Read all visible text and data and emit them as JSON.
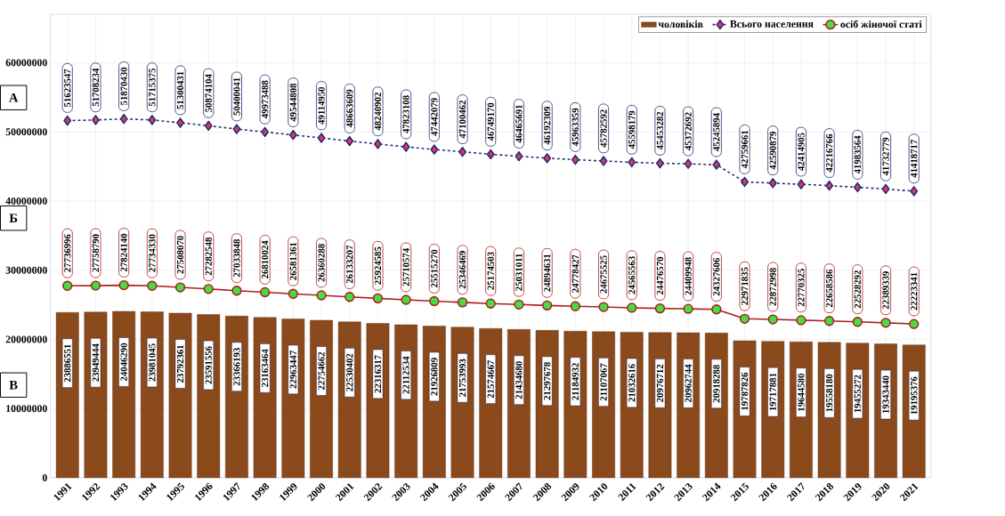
{
  "chart_data": {
    "type": "bar",
    "categories": [
      "1991",
      "1992",
      "1993",
      "1994",
      "1995",
      "1996",
      "1997",
      "1998",
      "1999",
      "2000",
      "2001",
      "2002",
      "2003",
      "2004",
      "2005",
      "2006",
      "2007",
      "2008",
      "2009",
      "2010",
      "2011",
      "2012",
      "2013",
      "2014",
      "2015",
      "2016",
      "2017",
      "2018",
      "2019",
      "2020",
      "2021"
    ],
    "series": [
      {
        "name": "чоловіків",
        "color": "#8b4a1c",
        "values": [
          23886551,
          23949444,
          24046290,
          23981045,
          23792361,
          23591556,
          23366193,
          23163464,
          22963447,
          22754662,
          22530402,
          22316317,
          22112534,
          21926809,
          21753993,
          21574667,
          21434680,
          21297678,
          21184932,
          21107067,
          21032616,
          20976712,
          20962744,
          20918288,
          19787826,
          19717881,
          19644580,
          19558180,
          19455272,
          19343440,
          19195376
        ]
      },
      {
        "name": "Всього населення",
        "type": "line",
        "color": "#1f2f6f",
        "marker": "diamond",
        "line_style": "dashed",
        "values": [
          51623547,
          51708234,
          51870430,
          51715375,
          51300431,
          50874104,
          50400041,
          49973488,
          49544808,
          49114950,
          48663609,
          48240902,
          47823108,
          47442079,
          47100462,
          46749170,
          46465691,
          46192309,
          45963359,
          45782592,
          45598179,
          45453282,
          45372692,
          45245894,
          42759661,
          42590879,
          42414905,
          42216766,
          41983564,
          41732779,
          41418717
        ]
      },
      {
        "name": "осіб жіночої статі",
        "type": "line",
        "color": "#b01c1c",
        "marker": "circle",
        "line_style": "solid",
        "values": [
          27736996,
          27758790,
          27824140,
          27734330,
          27508070,
          27282548,
          27033848,
          26810024,
          26581361,
          26360288,
          26133207,
          25924585,
          25710574,
          25515270,
          25346469,
          25174503,
          25031011,
          24894631,
          24778427,
          24675525,
          24565563,
          24476570,
          24409948,
          24327606,
          22971835,
          22872998,
          22770325,
          22658586,
          22528292,
          22389339,
          22223341
        ]
      }
    ],
    "ylim": [
      0,
      67000000
    ],
    "yticks": [
      0,
      10000000,
      20000000,
      30000000,
      40000000,
      50000000,
      60000000
    ],
    "grid": true,
    "legend": "top right",
    "data_labels": true,
    "annotations": [
      "А",
      "Б",
      "В"
    ]
  }
}
